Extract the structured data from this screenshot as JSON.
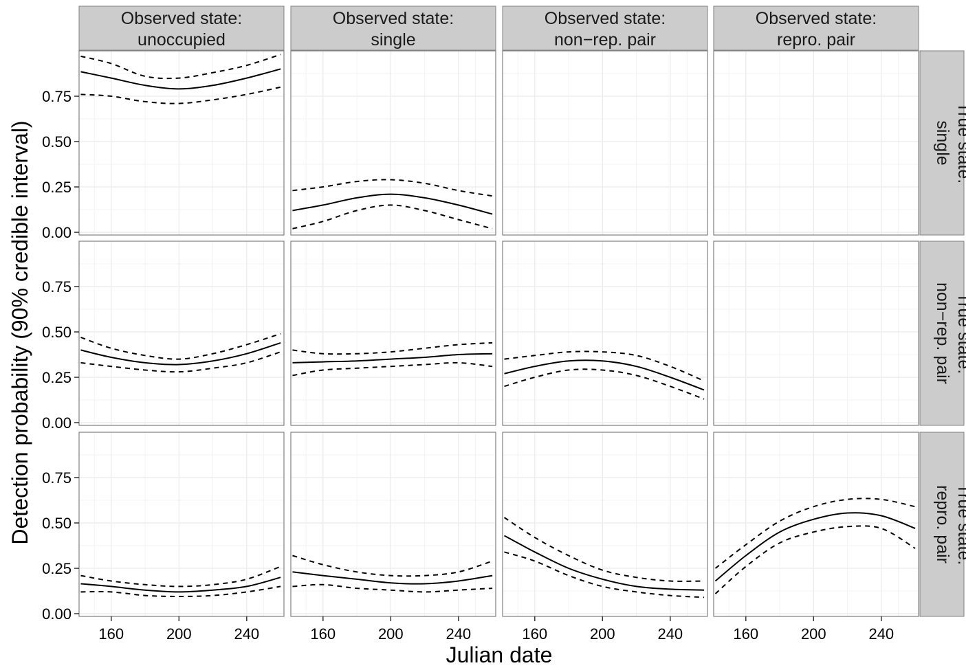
{
  "chart_data": {
    "type": "line",
    "layout": "facet-grid",
    "xlabel": "Julian date",
    "ylabel": "Detection probability (90% credible interval)",
    "xlim": [
      141,
      262
    ],
    "ylim": [
      -0.015,
      1.0
    ],
    "xticks": [
      160,
      200,
      240
    ],
    "yticks": [
      0.0,
      0.25,
      0.5,
      0.75
    ],
    "ytick_labels": [
      "0.00",
      "0.25",
      "0.50",
      "0.75"
    ],
    "grid": true,
    "line_styles": {
      "mean": "solid",
      "lower": "dashed",
      "upper": "dashed"
    },
    "colors": {
      "panel_bg": "#ffffff",
      "grid": "#ebebeb",
      "strip_bg": "#cccccc",
      "line": "#000000",
      "border": "#7f7f7f",
      "axis_text": "#000000"
    },
    "col_facets": [
      "Observed state:\nunoccupied",
      "Observed state:\nsingle",
      "Observed state:\nnon−rep. pair",
      "Observed state:\nrepro. pair"
    ],
    "row_facets": [
      "True state:\nsingle",
      "True state:\nnon−rep. pair",
      "True state:\nrepro. pair"
    ],
    "x": [
      142,
      160,
      180,
      200,
      220,
      240,
      260
    ],
    "panels": [
      {
        "row": 0,
        "col": 0,
        "mean": [
          0.885,
          0.85,
          0.81,
          0.79,
          0.81,
          0.85,
          0.9
        ],
        "lower": [
          0.76,
          0.75,
          0.72,
          0.71,
          0.73,
          0.76,
          0.8
        ],
        "upper": [
          0.97,
          0.93,
          0.86,
          0.85,
          0.88,
          0.92,
          0.98
        ]
      },
      {
        "row": 0,
        "col": 1,
        "mean": [
          0.12,
          0.15,
          0.19,
          0.21,
          0.19,
          0.15,
          0.1
        ],
        "lower": [
          0.02,
          0.06,
          0.12,
          0.15,
          0.12,
          0.07,
          0.02
        ],
        "upper": [
          0.23,
          0.25,
          0.28,
          0.29,
          0.27,
          0.23,
          0.2
        ]
      },
      {
        "row": 0,
        "col": 2,
        "mean": null,
        "lower": null,
        "upper": null
      },
      {
        "row": 0,
        "col": 3,
        "mean": null,
        "lower": null,
        "upper": null
      },
      {
        "row": 1,
        "col": 0,
        "mean": [
          0.4,
          0.36,
          0.33,
          0.32,
          0.34,
          0.38,
          0.44
        ],
        "lower": [
          0.33,
          0.31,
          0.29,
          0.28,
          0.3,
          0.33,
          0.39
        ],
        "upper": [
          0.47,
          0.41,
          0.37,
          0.35,
          0.38,
          0.43,
          0.49
        ]
      },
      {
        "row": 1,
        "col": 1,
        "mean": [
          0.33,
          0.335,
          0.34,
          0.35,
          0.36,
          0.375,
          0.38
        ],
        "lower": [
          0.26,
          0.29,
          0.3,
          0.31,
          0.32,
          0.33,
          0.31
        ],
        "upper": [
          0.4,
          0.38,
          0.38,
          0.39,
          0.41,
          0.43,
          0.44
        ]
      },
      {
        "row": 1,
        "col": 2,
        "mean": [
          0.27,
          0.31,
          0.34,
          0.34,
          0.31,
          0.25,
          0.18
        ],
        "lower": [
          0.2,
          0.25,
          0.29,
          0.29,
          0.26,
          0.2,
          0.13
        ],
        "upper": [
          0.35,
          0.37,
          0.39,
          0.39,
          0.37,
          0.31,
          0.23
        ]
      },
      {
        "row": 1,
        "col": 3,
        "mean": null,
        "lower": null,
        "upper": null
      },
      {
        "row": 2,
        "col": 0,
        "mean": [
          0.165,
          0.15,
          0.13,
          0.12,
          0.13,
          0.15,
          0.2
        ],
        "lower": [
          0.12,
          0.12,
          0.1,
          0.095,
          0.1,
          0.12,
          0.15
        ],
        "upper": [
          0.21,
          0.18,
          0.16,
          0.15,
          0.16,
          0.19,
          0.26
        ]
      },
      {
        "row": 2,
        "col": 1,
        "mean": [
          0.23,
          0.21,
          0.19,
          0.17,
          0.165,
          0.18,
          0.21
        ],
        "lower": [
          0.15,
          0.16,
          0.14,
          0.13,
          0.12,
          0.13,
          0.14
        ],
        "upper": [
          0.32,
          0.27,
          0.23,
          0.21,
          0.21,
          0.23,
          0.29
        ]
      },
      {
        "row": 2,
        "col": 2,
        "mean": [
          0.43,
          0.34,
          0.25,
          0.19,
          0.15,
          0.135,
          0.13
        ],
        "lower": [
          0.34,
          0.29,
          0.21,
          0.15,
          0.12,
          0.1,
          0.09
        ],
        "upper": [
          0.53,
          0.42,
          0.32,
          0.24,
          0.2,
          0.18,
          0.18
        ]
      },
      {
        "row": 2,
        "col": 3,
        "mean": [
          0.18,
          0.32,
          0.45,
          0.52,
          0.555,
          0.54,
          0.47
        ],
        "lower": [
          0.11,
          0.26,
          0.39,
          0.45,
          0.48,
          0.47,
          0.36
        ],
        "upper": [
          0.25,
          0.38,
          0.51,
          0.59,
          0.63,
          0.63,
          0.59
        ]
      }
    ]
  }
}
